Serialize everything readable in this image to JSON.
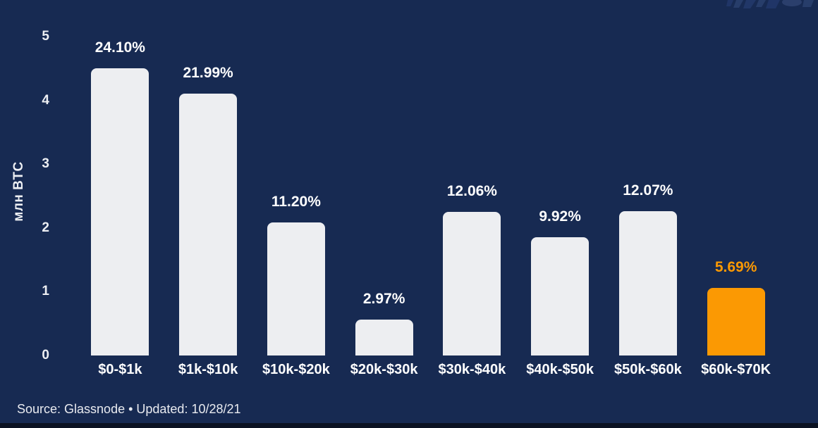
{
  "chart_data": {
    "type": "bar",
    "title": "",
    "ylabel": "млн BTC",
    "xlabel": "",
    "categories": [
      "$0-$1k",
      "$1k-$10k",
      "$10k-$20k",
      "$20k-$30k",
      "$30k-$40k",
      "$40k-$50k",
      "$50k-$60k",
      "$60k-$70K"
    ],
    "values": [
      4.5,
      4.11,
      2.09,
      0.56,
      2.25,
      1.85,
      2.26,
      1.06
    ],
    "value_labels": [
      "24.10%",
      "21.99%",
      "11.20%",
      "2.97%",
      "12.06%",
      "9.92%",
      "12.07%",
      "5.69%"
    ],
    "ylim": [
      0,
      5
    ],
    "yticks": [
      0,
      1,
      2,
      3,
      4,
      5
    ],
    "grid": false,
    "legend": "none",
    "highlight_index": 7,
    "colors": {
      "background": "#172A52",
      "bar": "#EDEEF1",
      "highlight_bar": "#FB9903",
      "label": "#FFFFFF",
      "highlight_label": "#FB9903",
      "axis_text": "#EDEFF3"
    }
  },
  "footer": {
    "source": "Source: Glassnode • Updated: 10/28/21"
  },
  "icons": {
    "watermark": "faint-logo-strokes-cut-off"
  }
}
